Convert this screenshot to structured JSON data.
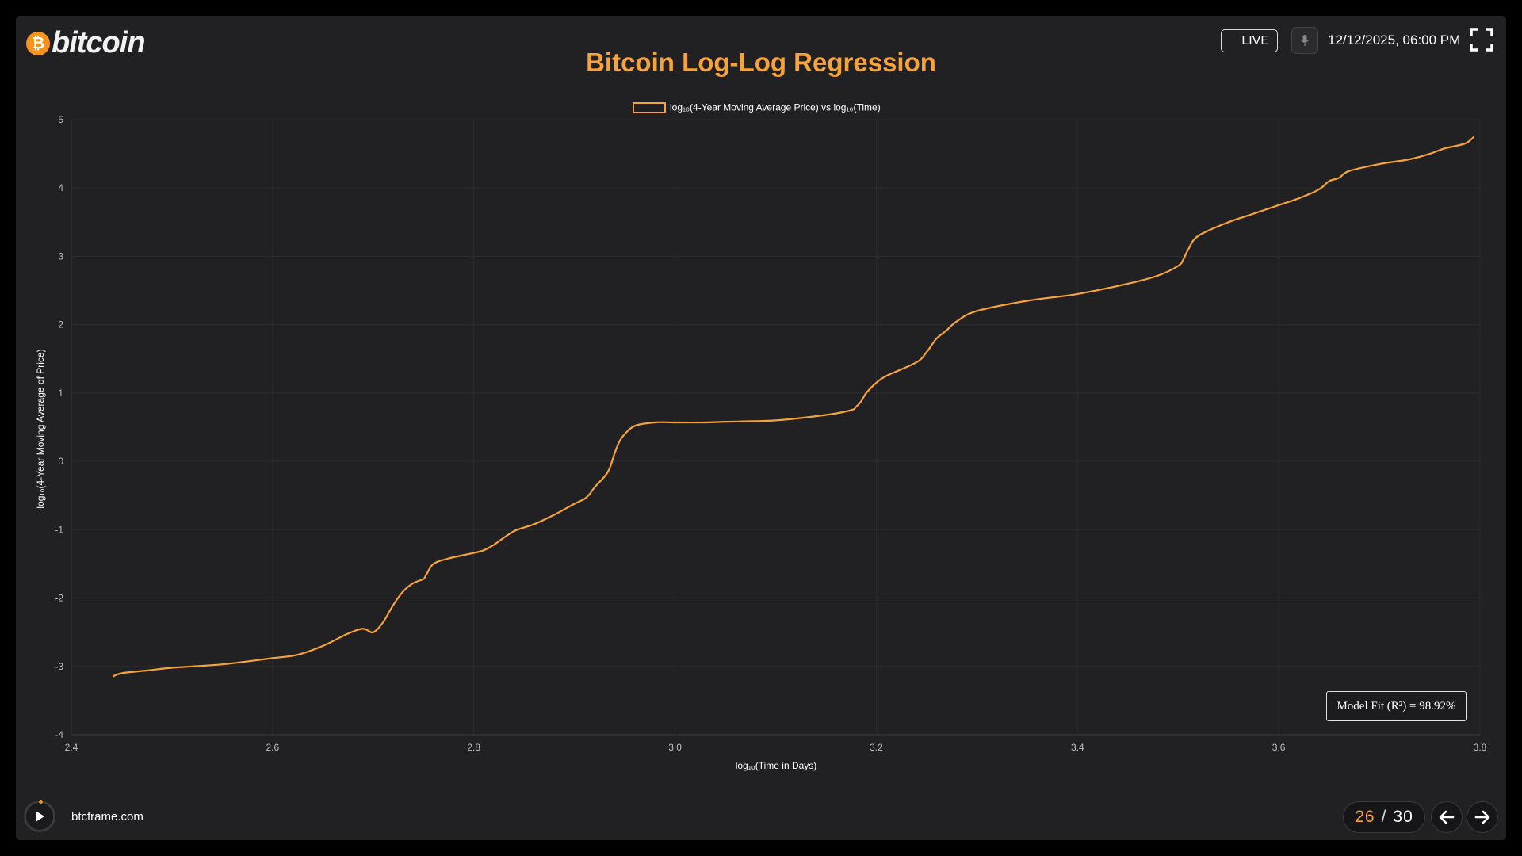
{
  "header": {
    "logo_text": "bitcoin",
    "logo_glyph": "₿",
    "live_label": "LIVE",
    "datetime": "12/12/2025, 06:00 PM",
    "mic_icon": "microphone-icon",
    "fullscreen_icon": "fullscreen-icon"
  },
  "chart_data": {
    "type": "line",
    "title": "Bitcoin Log-Log Regression",
    "legend_label": "log₁₀(4-Year Moving Average Price) vs log₁₀(Time)",
    "legend_position": "top-center",
    "xlabel": "log₁₀(Time in Days)",
    "ylabel": "log₁₀(4-Year Moving Average of Price)",
    "xlim": [
      2.4,
      3.8
    ],
    "ylim": [
      -4,
      5
    ],
    "xticks": [
      "2.4",
      "2.6",
      "2.8",
      "3.0",
      "3.2",
      "3.4",
      "3.6",
      "3.8"
    ],
    "yticks": [
      "5",
      "4",
      "3",
      "2",
      "1",
      "0",
      "-1",
      "-2",
      "-3",
      "-4"
    ],
    "grid": true,
    "line_color": "#f7a23a",
    "series": [
      {
        "x": [
          2.441,
          2.45,
          2.475,
          2.5,
          2.55,
          2.6,
          2.625,
          2.65,
          2.675,
          2.69,
          2.7,
          2.71,
          2.72,
          2.73,
          2.74,
          2.75,
          2.753,
          2.76,
          2.775,
          2.8,
          2.81,
          2.82,
          2.84,
          2.86,
          2.88,
          2.9,
          2.91,
          2.915,
          2.92,
          2.93,
          2.935,
          2.94,
          2.945,
          2.95,
          2.96,
          2.98,
          3.0,
          3.03,
          3.05,
          3.1,
          3.15,
          3.175,
          3.18,
          3.185,
          3.19,
          3.2,
          3.21,
          3.24,
          3.25,
          3.255,
          3.26,
          3.27,
          3.28,
          3.3,
          3.35,
          3.4,
          3.45,
          3.48,
          3.5,
          3.505,
          3.51,
          3.52,
          3.55,
          3.57,
          3.6,
          3.62,
          3.64,
          3.65,
          3.66,
          3.67,
          3.7,
          3.73,
          3.75,
          3.765,
          3.785,
          3.794
        ],
        "y": [
          -3.15,
          -3.1,
          -3.06,
          -3.02,
          -2.97,
          -2.88,
          -2.83,
          -2.7,
          -2.52,
          -2.45,
          -2.5,
          -2.35,
          -2.1,
          -1.9,
          -1.78,
          -1.72,
          -1.65,
          -1.5,
          -1.42,
          -1.34,
          -1.3,
          -1.22,
          -1.02,
          -0.92,
          -0.78,
          -0.62,
          -0.55,
          -0.48,
          -0.38,
          -0.22,
          -0.1,
          0.12,
          0.3,
          0.4,
          0.52,
          0.57,
          0.57,
          0.57,
          0.58,
          0.6,
          0.68,
          0.75,
          0.8,
          0.88,
          1.0,
          1.15,
          1.25,
          1.45,
          1.6,
          1.7,
          1.8,
          1.92,
          2.05,
          2.2,
          2.35,
          2.45,
          2.6,
          2.72,
          2.86,
          2.95,
          3.1,
          3.3,
          3.5,
          3.6,
          3.75,
          3.85,
          3.98,
          4.1,
          4.15,
          4.25,
          4.35,
          4.42,
          4.5,
          4.58,
          4.65,
          4.75
        ]
      }
    ]
  },
  "model_fit": "Model Fit (R²) = 98.92%",
  "footer": {
    "site": "btcframe.com",
    "page_current": "26",
    "page_separator": "/",
    "page_total": "30"
  }
}
